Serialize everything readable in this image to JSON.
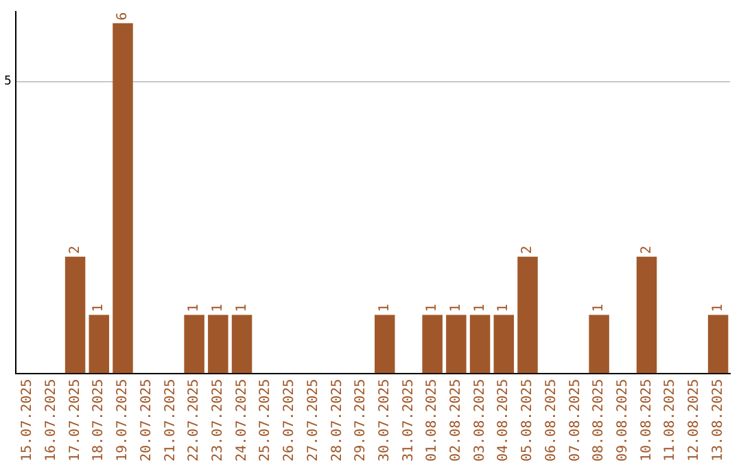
{
  "chart_data": {
    "type": "bar",
    "categories": [
      "15.07.2025",
      "16.07.2025",
      "17.07.2025",
      "18.07.2025",
      "19.07.2025",
      "20.07.2025",
      "21.07.2025",
      "22.07.2025",
      "23.07.2025",
      "24.07.2025",
      "25.07.2025",
      "26.07.2025",
      "27.07.2025",
      "28.07.2025",
      "29.07.2025",
      "30.07.2025",
      "31.07.2025",
      "01.08.2025",
      "02.08.2025",
      "03.08.2025",
      "04.08.2025",
      "05.08.2025",
      "06.08.2025",
      "07.08.2025",
      "08.08.2025",
      "09.08.2025",
      "10.08.2025",
      "11.08.2025",
      "12.08.2025",
      "13.08.2025"
    ],
    "values": [
      0,
      0,
      2,
      1,
      6,
      0,
      0,
      1,
      1,
      1,
      0,
      0,
      0,
      0,
      0,
      1,
      0,
      1,
      1,
      1,
      1,
      2,
      0,
      0,
      1,
      0,
      2,
      0,
      0,
      1
    ],
    "value_labels": [
      null,
      null,
      "2",
      "1",
      "6",
      null,
      null,
      "1",
      "1",
      "1",
      null,
      null,
      null,
      null,
      null,
      "1",
      null,
      "1",
      "1",
      "1",
      "1",
      "2",
      null,
      null,
      "1",
      null,
      "2",
      null,
      null,
      "1"
    ],
    "color": "#a0582a",
    "ylim": [
      0,
      6.2
    ],
    "yticks": [
      5
    ],
    "grid": "y",
    "legend": false
  }
}
